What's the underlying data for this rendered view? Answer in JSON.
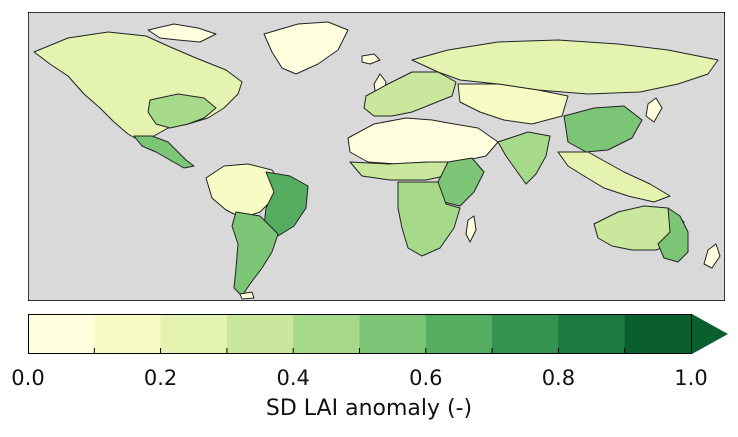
{
  "figure": {
    "variable": "SD LAI anomaly",
    "colorbar_label": "SD LAI anomaly (-)",
    "background_color": "#d9d9d9",
    "coastline_color": "#222222"
  },
  "colorbar": {
    "min": 0.0,
    "max": 1.0,
    "extend": "max",
    "bins": [
      {
        "from": 0.0,
        "to": 0.1,
        "color": "#ffffe0"
      },
      {
        "from": 0.1,
        "to": 0.2,
        "color": "#f7fcc4"
      },
      {
        "from": 0.2,
        "to": 0.3,
        "color": "#e4f4b0"
      },
      {
        "from": 0.3,
        "to": 0.4,
        "color": "#c9e89e"
      },
      {
        "from": 0.4,
        "to": 0.5,
        "color": "#a6d98a"
      },
      {
        "from": 0.5,
        "to": 0.6,
        "color": "#7dc576"
      },
      {
        "from": 0.6,
        "to": 0.7,
        "color": "#55ad62"
      },
      {
        "from": 0.7,
        "to": 0.8,
        "color": "#34934e"
      },
      {
        "from": 0.8,
        "to": 0.9,
        "color": "#1b7a3d"
      },
      {
        "from": 0.9,
        "to": 1.0,
        "color": "#0b5e2e"
      }
    ],
    "tick_values": [
      0.0,
      0.2,
      0.4,
      0.6,
      0.8,
      1.0
    ],
    "tick_labels": [
      "0.0",
      "0.2",
      "0.4",
      "0.6",
      "0.8",
      "1.0"
    ]
  },
  "regions": [
    {
      "name": "North America",
      "value": 0.2
    },
    {
      "name": "Eastern United States",
      "value": 0.4
    },
    {
      "name": "Mexico",
      "value": 0.5
    },
    {
      "name": "Amazon Basin",
      "value": 0.15
    },
    {
      "name": "Eastern Brazil",
      "value": 0.6
    },
    {
      "name": "Southern South America",
      "value": 0.55
    },
    {
      "name": "Greenland",
      "value": 0.05
    },
    {
      "name": "Europe",
      "value": 0.3
    },
    {
      "name": "Russia / Siberia",
      "value": 0.25
    },
    {
      "name": "Sahara and Arabia",
      "value": 0.0
    },
    {
      "name": "Sahel",
      "value": 0.35
    },
    {
      "name": "East Africa",
      "value": 0.5
    },
    {
      "name": "Southern Africa",
      "value": 0.45
    },
    {
      "name": "India",
      "value": 0.45
    },
    {
      "name": "East China",
      "value": 0.5
    },
    {
      "name": "Central Asia",
      "value": 0.1
    },
    {
      "name": "Southeast Asia",
      "value": 0.35
    },
    {
      "name": "Australia interior",
      "value": 0.25
    },
    {
      "name": "Eastern Australia",
      "value": 0.55
    }
  ]
}
